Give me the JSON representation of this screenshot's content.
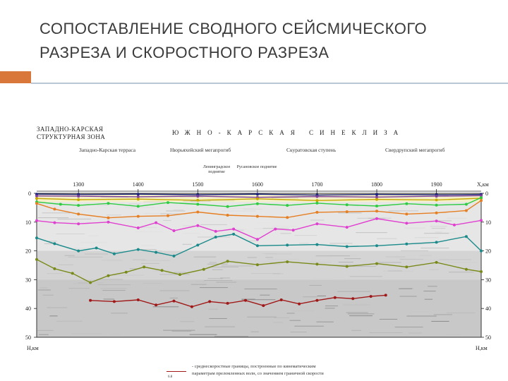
{
  "slide": {
    "title_line1": "СОПОСТАВЛЕНИЕ СВОДНОГО СЕЙСМИЧЕСКОГО",
    "title_line2": "РАЗРЕЗА И СКОРОСТНОГО РАЗРЕЗА"
  },
  "figure": {
    "zone_left_line1": "ЗАПАДНО-КАРСКАЯ",
    "zone_left_line2": "СТРУКТУРНАЯ ЗОНА",
    "zone_main": "ЮЖНО-КАРСКАЯ СИНЕКЛИЗА",
    "sub_west_terrace": "Западно-Карская терраса",
    "sub_nyurkhey": "Нюрьяхейский мегапрогиб",
    "sub_skuratov": "Скуратовская ступень",
    "sub_sverdrup": "Свердрупский мегапрогиб",
    "small_leningrad": "Ленинградское поднятие",
    "small_rusanov": "Русановское поднятие",
    "x_unit": "X,км",
    "depth_unit_left": "Н,км",
    "depth_unit_right": "Н,км",
    "legend_line1": "- среднескоростные границы, построенные по кинематическим",
    "legend_line2": "параметрам преломленных волн, со значением граничной скорости",
    "legend_mark_label": "6.8"
  },
  "chart_data": {
    "type": "line",
    "title": "",
    "xlabel": "X,км",
    "ylabel": "Н,км",
    "xlim": [
      1230,
      1975
    ],
    "ylim": [
      50,
      0
    ],
    "x_ticks": [
      1300,
      1400,
      1500,
      1600,
      1700,
      1800,
      1900
    ],
    "y_ticks": [
      0,
      10,
      20,
      30,
      40,
      50
    ],
    "series": [
      {
        "color": "#1a237e",
        "x": [
          1230,
          1300,
          1400,
          1500,
          1600,
          1700,
          1800,
          1900,
          1975
        ],
        "y": [
          0.3,
          0.4,
          0.3,
          0.5,
          0.3,
          0.6,
          0.4,
          0.5,
          0.4
        ]
      },
      {
        "color": "#7d3f9a",
        "x": [
          1230,
          1300,
          1400,
          1500,
          1600,
          1700,
          1800,
          1900,
          1975
        ],
        "y": [
          0.9,
          1.0,
          1.2,
          1.0,
          1.4,
          1.1,
          1.3,
          1.0,
          0.8
        ]
      },
      {
        "color": "#c8a800",
        "x": [
          1230,
          1300,
          1400,
          1500,
          1600,
          1700,
          1800,
          1900,
          1975
        ],
        "y": [
          1.8,
          2.2,
          2.0,
          2.4,
          1.9,
          2.5,
          2.1,
          2.3,
          1.7
        ]
      },
      {
        "color": "#2ecc40",
        "x": [
          1230,
          1270,
          1300,
          1350,
          1400,
          1450,
          1500,
          1550,
          1600,
          1650,
          1700,
          1750,
          1800,
          1850,
          1900,
          1950,
          1975
        ],
        "y": [
          3.0,
          3.8,
          4.2,
          3.5,
          4.5,
          3.2,
          3.8,
          4.6,
          3.6,
          4.2,
          3.4,
          4.0,
          4.4,
          3.6,
          4.1,
          3.8,
          1.5
        ]
      },
      {
        "color": "#e67e22",
        "x": [
          1230,
          1260,
          1300,
          1350,
          1400,
          1450,
          1500,
          1550,
          1600,
          1650,
          1700,
          1750,
          1800,
          1850,
          1900,
          1950,
          1975
        ],
        "y": [
          3.5,
          5.5,
          7.2,
          8.5,
          8.0,
          7.8,
          6.5,
          7.6,
          8.0,
          8.4,
          6.6,
          6.4,
          6.2,
          7.2,
          6.8,
          6.0,
          2.5
        ]
      },
      {
        "color": "#e040d0",
        "x": [
          1230,
          1260,
          1300,
          1350,
          1400,
          1430,
          1460,
          1500,
          1530,
          1560,
          1600,
          1630,
          1660,
          1700,
          1750,
          1800,
          1850,
          1900,
          1930,
          1975
        ],
        "y": [
          9.5,
          10.2,
          10.6,
          10.0,
          12.0,
          10.2,
          13.0,
          11.2,
          13.2,
          12.4,
          16.0,
          12.4,
          12.8,
          10.6,
          11.8,
          8.8,
          10.4,
          9.6,
          11.0,
          9.4
        ]
      },
      {
        "color": "#1a8a8a",
        "x": [
          1230,
          1260,
          1300,
          1330,
          1360,
          1400,
          1430,
          1460,
          1500,
          1530,
          1560,
          1600,
          1650,
          1700,
          1750,
          1800,
          1850,
          1900,
          1950,
          1975
        ],
        "y": [
          15.5,
          17.5,
          20.0,
          19.0,
          21.0,
          19.5,
          20.5,
          21.8,
          18.0,
          15.2,
          14.2,
          18.2,
          18.0,
          17.8,
          18.5,
          18.2,
          17.6,
          17.0,
          15.0,
          20.0
        ]
      },
      {
        "color": "#7a8a1a",
        "x": [
          1230,
          1260,
          1290,
          1320,
          1350,
          1380,
          1410,
          1440,
          1470,
          1510,
          1550,
          1600,
          1650,
          1700,
          1750,
          1800,
          1850,
          1900,
          1950,
          1975
        ],
        "y": [
          23.0,
          26.2,
          27.8,
          31.0,
          28.6,
          27.4,
          25.6,
          26.8,
          28.2,
          26.4,
          23.6,
          24.8,
          23.8,
          24.6,
          25.4,
          24.4,
          25.6,
          24.0,
          26.4,
          27.2
        ]
      },
      {
        "color": "#a01818",
        "x": [
          1320,
          1360,
          1400,
          1430,
          1460,
          1490,
          1520,
          1550,
          1580,
          1610,
          1640,
          1670,
          1700,
          1730,
          1760,
          1790,
          1815
        ],
        "y": [
          37.2,
          37.6,
          37.0,
          38.8,
          37.4,
          39.4,
          37.6,
          38.2,
          37.2,
          39.0,
          37.0,
          38.4,
          37.2,
          36.2,
          36.6,
          35.8,
          35.4
        ]
      }
    ]
  }
}
